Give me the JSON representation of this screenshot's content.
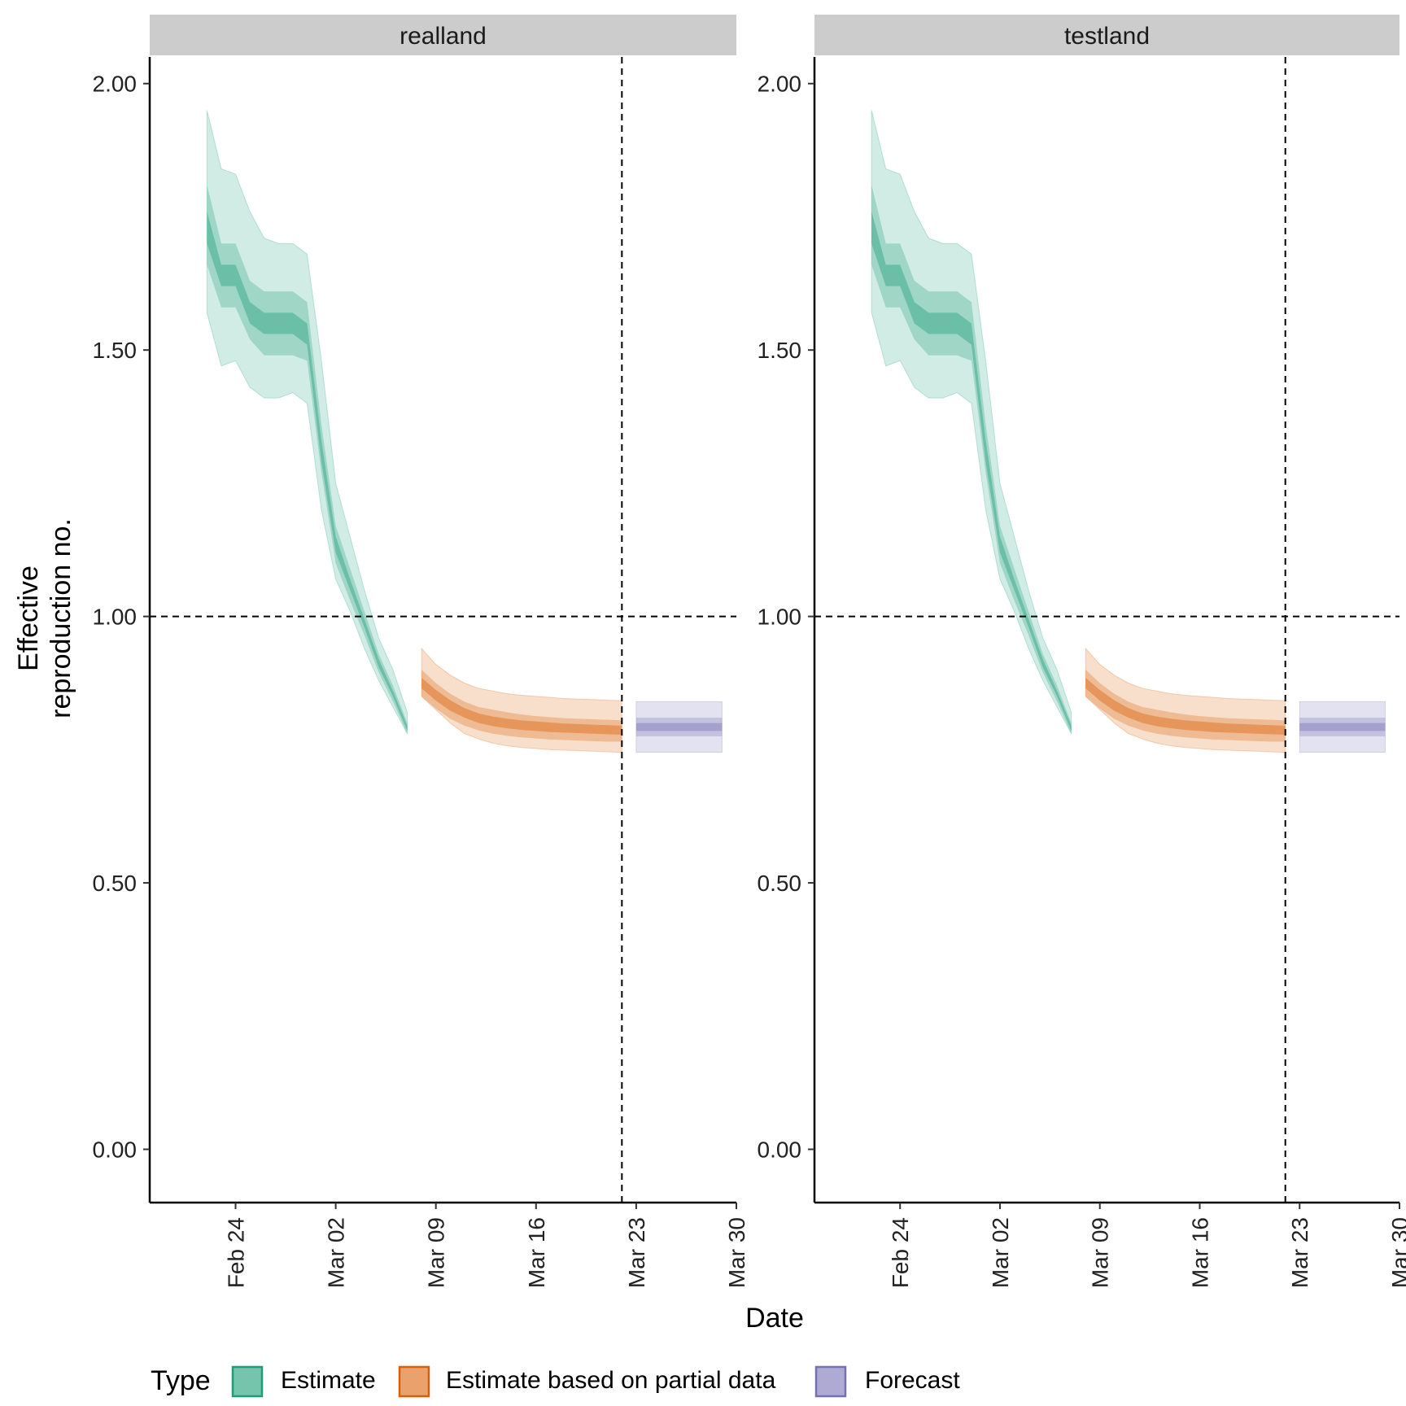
{
  "chart_data": {
    "type": "area",
    "ylabel_lines": [
      "Effective",
      "reproduction no."
    ],
    "xlabel": "Date",
    "xlim": [
      "2020-02-18",
      "2020-03-30"
    ],
    "ylim": [
      -0.1,
      2.05
    ],
    "yticks": [
      0,
      0.5,
      1.0,
      1.5,
      2.0
    ],
    "ytick_labels": [
      "0.00",
      "0.50",
      "1.00",
      "1.50",
      "2.00"
    ],
    "xticks": [
      "2020-02-24",
      "2020-03-02",
      "2020-03-09",
      "2020-03-16",
      "2020-03-23",
      "2020-03-30"
    ],
    "xtick_labels": [
      "Feb 24",
      "Mar 02",
      "Mar 09",
      "Mar 16",
      "Mar 23",
      "Mar 30"
    ],
    "hline": 1.0,
    "vline": "2020-03-22",
    "grid": false,
    "legend": {
      "title": "Type",
      "position": "bottom",
      "entries": [
        {
          "label": "Estimate",
          "fill": "#76c4ab",
          "stroke": "#1b9e77"
        },
        {
          "label": "Estimate based on partial data",
          "fill": "#eaa16c",
          "stroke": "#d95f02"
        },
        {
          "label": "Forecast",
          "fill": "#aeaad4",
          "stroke": "#7570b3"
        }
      ]
    },
    "colors": {
      "estimate": "#1b9e77",
      "partial": "#d95f02",
      "forecast": "#7570b3"
    },
    "panels": [
      {
        "strip": "realland",
        "series": [
          {
            "name": "Estimate",
            "dates": [
              "2020-02-22",
              "2020-02-23",
              "2020-02-24",
              "2020-02-25",
              "2020-02-26",
              "2020-02-27",
              "2020-02-28",
              "2020-02-29",
              "2020-03-01",
              "2020-03-02",
              "2020-03-03",
              "2020-03-04",
              "2020-03-05",
              "2020-03-06",
              "2020-03-07"
            ],
            "upper90": [
              1.95,
              1.84,
              1.83,
              1.76,
              1.71,
              1.7,
              1.7,
              1.68,
              1.48,
              1.25,
              1.15,
              1.05,
              0.96,
              0.9,
              0.82
            ],
            "upper50": [
              1.81,
              1.7,
              1.7,
              1.63,
              1.61,
              1.61,
              1.61,
              1.59,
              1.36,
              1.17,
              1.09,
              1.01,
              0.93,
              0.87,
              0.8
            ],
            "upper20": [
              1.76,
              1.66,
              1.66,
              1.59,
              1.57,
              1.57,
              1.57,
              1.55,
              1.33,
              1.15,
              1.07,
              0.995,
              0.92,
              0.86,
              0.795
            ],
            "median": [
              1.73,
              1.64,
              1.64,
              1.57,
              1.55,
              1.55,
              1.55,
              1.53,
              1.31,
              1.14,
              1.06,
              0.99,
              0.915,
              0.855,
              0.79
            ],
            "lower20": [
              1.7,
              1.62,
              1.62,
              1.55,
              1.53,
              1.53,
              1.53,
              1.51,
              1.29,
              1.12,
              1.05,
              0.98,
              0.905,
              0.85,
              0.785
            ],
            "lower50": [
              1.66,
              1.58,
              1.58,
              1.52,
              1.49,
              1.49,
              1.49,
              1.48,
              1.27,
              1.1,
              1.03,
              0.965,
              0.895,
              0.84,
              0.78
            ],
            "lower90": [
              1.57,
              1.47,
              1.48,
              1.43,
              1.41,
              1.41,
              1.42,
              1.4,
              1.2,
              1.07,
              1.01,
              0.94,
              0.88,
              0.83,
              0.78
            ]
          },
          {
            "name": "Estimate based on partial data",
            "dates": [
              "2020-03-08",
              "2020-03-09",
              "2020-03-10",
              "2020-03-11",
              "2020-03-12",
              "2020-03-13",
              "2020-03-14",
              "2020-03-15",
              "2020-03-16",
              "2020-03-17",
              "2020-03-18",
              "2020-03-19",
              "2020-03-20",
              "2020-03-21",
              "2020-03-22"
            ],
            "upper90": [
              0.94,
              0.91,
              0.89,
              0.875,
              0.865,
              0.86,
              0.855,
              0.852,
              0.85,
              0.848,
              0.846,
              0.845,
              0.844,
              0.843,
              0.842
            ],
            "upper50": [
              0.9,
              0.875,
              0.855,
              0.84,
              0.83,
              0.825,
              0.82,
              0.816,
              0.813,
              0.811,
              0.809,
              0.808,
              0.807,
              0.806,
              0.805
            ],
            "upper20": [
              0.885,
              0.862,
              0.843,
              0.828,
              0.818,
              0.812,
              0.808,
              0.805,
              0.803,
              0.801,
              0.799,
              0.798,
              0.797,
              0.796,
              0.795
            ],
            "median": [
              0.875,
              0.852,
              0.833,
              0.819,
              0.809,
              0.803,
              0.799,
              0.796,
              0.794,
              0.792,
              0.791,
              0.79,
              0.789,
              0.788,
              0.787
            ],
            "lower20": [
              0.865,
              0.842,
              0.823,
              0.81,
              0.8,
              0.794,
              0.79,
              0.787,
              0.785,
              0.783,
              0.782,
              0.781,
              0.78,
              0.779,
              0.778
            ],
            "lower50": [
              0.85,
              0.827,
              0.808,
              0.795,
              0.786,
              0.78,
              0.776,
              0.773,
              0.771,
              0.769,
              0.768,
              0.767,
              0.766,
              0.765,
              0.765
            ],
            "lower90": [
              0.85,
              0.825,
              0.8,
              0.78,
              0.77,
              0.762,
              0.757,
              0.754,
              0.752,
              0.75,
              0.749,
              0.748,
              0.747,
              0.746,
              0.745
            ]
          },
          {
            "name": "Forecast",
            "dates": [
              "2020-03-23",
              "2020-03-24",
              "2020-03-25",
              "2020-03-26",
              "2020-03-27",
              "2020-03-28",
              "2020-03-29"
            ],
            "upper90": [
              0.84,
              0.84,
              0.84,
              0.84,
              0.84,
              0.84,
              0.84
            ],
            "upper50": [
              0.81,
              0.81,
              0.81,
              0.81,
              0.81,
              0.81,
              0.81
            ],
            "upper20": [
              0.8,
              0.8,
              0.8,
              0.8,
              0.8,
              0.8,
              0.8
            ],
            "median": [
              0.79,
              0.79,
              0.79,
              0.79,
              0.79,
              0.79,
              0.79
            ],
            "lower20": [
              0.785,
              0.785,
              0.785,
              0.785,
              0.785,
              0.785,
              0.785
            ],
            "lower50": [
              0.775,
              0.775,
              0.775,
              0.775,
              0.775,
              0.775,
              0.775
            ],
            "lower90": [
              0.745,
              0.745,
              0.745,
              0.745,
              0.745,
              0.745,
              0.745
            ]
          }
        ]
      },
      {
        "strip": "testland",
        "series": [
          {
            "name": "Estimate",
            "dates": [
              "2020-02-22",
              "2020-02-23",
              "2020-02-24",
              "2020-02-25",
              "2020-02-26",
              "2020-02-27",
              "2020-02-28",
              "2020-02-29",
              "2020-03-01",
              "2020-03-02",
              "2020-03-03",
              "2020-03-04",
              "2020-03-05",
              "2020-03-06",
              "2020-03-07"
            ],
            "upper90": [
              1.95,
              1.84,
              1.83,
              1.76,
              1.71,
              1.7,
              1.7,
              1.68,
              1.48,
              1.25,
              1.15,
              1.05,
              0.96,
              0.9,
              0.82
            ],
            "upper50": [
              1.81,
              1.7,
              1.7,
              1.63,
              1.61,
              1.61,
              1.61,
              1.59,
              1.36,
              1.17,
              1.09,
              1.01,
              0.93,
              0.87,
              0.8
            ],
            "upper20": [
              1.76,
              1.66,
              1.66,
              1.59,
              1.57,
              1.57,
              1.57,
              1.55,
              1.33,
              1.15,
              1.07,
              0.995,
              0.92,
              0.86,
              0.795
            ],
            "median": [
              1.73,
              1.64,
              1.64,
              1.57,
              1.55,
              1.55,
              1.55,
              1.53,
              1.31,
              1.14,
              1.06,
              0.99,
              0.915,
              0.855,
              0.79
            ],
            "lower20": [
              1.7,
              1.62,
              1.62,
              1.55,
              1.53,
              1.53,
              1.53,
              1.51,
              1.29,
              1.12,
              1.05,
              0.98,
              0.905,
              0.85,
              0.785
            ],
            "lower50": [
              1.66,
              1.58,
              1.58,
              1.52,
              1.49,
              1.49,
              1.49,
              1.48,
              1.27,
              1.1,
              1.03,
              0.965,
              0.895,
              0.84,
              0.78
            ],
            "lower90": [
              1.57,
              1.47,
              1.48,
              1.43,
              1.41,
              1.41,
              1.42,
              1.4,
              1.2,
              1.07,
              1.01,
              0.94,
              0.88,
              0.83,
              0.78
            ]
          },
          {
            "name": "Estimate based on partial data",
            "dates": [
              "2020-03-08",
              "2020-03-09",
              "2020-03-10",
              "2020-03-11",
              "2020-03-12",
              "2020-03-13",
              "2020-03-14",
              "2020-03-15",
              "2020-03-16",
              "2020-03-17",
              "2020-03-18",
              "2020-03-19",
              "2020-03-20",
              "2020-03-21",
              "2020-03-22"
            ],
            "upper90": [
              0.94,
              0.91,
              0.89,
              0.875,
              0.865,
              0.86,
              0.855,
              0.852,
              0.85,
              0.848,
              0.846,
              0.845,
              0.844,
              0.843,
              0.842
            ],
            "upper50": [
              0.9,
              0.875,
              0.855,
              0.84,
              0.83,
              0.825,
              0.82,
              0.816,
              0.813,
              0.811,
              0.809,
              0.808,
              0.807,
              0.806,
              0.805
            ],
            "upper20": [
              0.885,
              0.862,
              0.843,
              0.828,
              0.818,
              0.812,
              0.808,
              0.805,
              0.803,
              0.801,
              0.799,
              0.798,
              0.797,
              0.796,
              0.795
            ],
            "median": [
              0.875,
              0.852,
              0.833,
              0.819,
              0.809,
              0.803,
              0.799,
              0.796,
              0.794,
              0.792,
              0.791,
              0.79,
              0.789,
              0.788,
              0.787
            ],
            "lower20": [
              0.865,
              0.842,
              0.823,
              0.81,
              0.8,
              0.794,
              0.79,
              0.787,
              0.785,
              0.783,
              0.782,
              0.781,
              0.78,
              0.779,
              0.778
            ],
            "lower50": [
              0.85,
              0.827,
              0.808,
              0.795,
              0.786,
              0.78,
              0.776,
              0.773,
              0.771,
              0.769,
              0.768,
              0.767,
              0.766,
              0.765,
              0.765
            ],
            "lower90": [
              0.85,
              0.825,
              0.8,
              0.78,
              0.77,
              0.762,
              0.757,
              0.754,
              0.752,
              0.75,
              0.749,
              0.748,
              0.747,
              0.746,
              0.745
            ]
          },
          {
            "name": "Forecast",
            "dates": [
              "2020-03-23",
              "2020-03-24",
              "2020-03-25",
              "2020-03-26",
              "2020-03-27",
              "2020-03-28",
              "2020-03-29"
            ],
            "upper90": [
              0.84,
              0.84,
              0.84,
              0.84,
              0.84,
              0.84,
              0.84
            ],
            "upper50": [
              0.81,
              0.81,
              0.81,
              0.81,
              0.81,
              0.81,
              0.81
            ],
            "upper20": [
              0.8,
              0.8,
              0.8,
              0.8,
              0.8,
              0.8,
              0.8
            ],
            "median": [
              0.79,
              0.79,
              0.79,
              0.79,
              0.79,
              0.79,
              0.79
            ],
            "lower20": [
              0.785,
              0.785,
              0.785,
              0.785,
              0.785,
              0.785,
              0.785
            ],
            "lower50": [
              0.775,
              0.775,
              0.775,
              0.775,
              0.775,
              0.775,
              0.775
            ],
            "lower90": [
              0.745,
              0.745,
              0.745,
              0.745,
              0.745,
              0.745,
              0.745
            ]
          }
        ]
      }
    ]
  }
}
